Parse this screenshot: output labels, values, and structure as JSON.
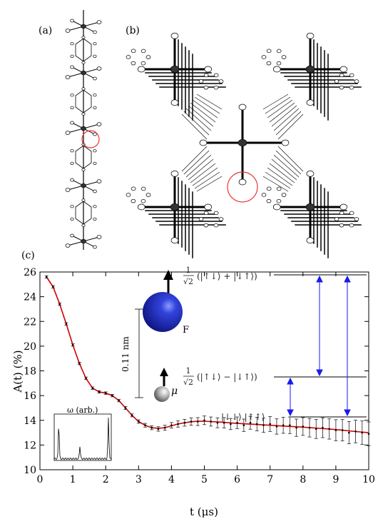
{
  "panels": {
    "a_label": "(a)",
    "b_label": "(b)",
    "c_label": "(c)"
  },
  "chart_data": {
    "type": "scatter",
    "xlabel": "t (μs)",
    "ylabel": "A(t) (%)",
    "xlim": [
      0,
      10
    ],
    "ylim": [
      10,
      26
    ],
    "xticks": [
      0,
      1,
      2,
      3,
      4,
      5,
      6,
      7,
      8,
      9,
      10
    ],
    "yticks": [
      10,
      12,
      14,
      16,
      18,
      20,
      22,
      24,
      26
    ],
    "grid": false,
    "series": [
      {
        "kind": "data-with-errorbars",
        "color": "#000000",
        "x": [
          0.2,
          0.4,
          0.6,
          0.8,
          1.0,
          1.2,
          1.4,
          1.6,
          1.8,
          2.0,
          2.2,
          2.4,
          2.6,
          2.8,
          3.0,
          3.2,
          3.4,
          3.6,
          3.8,
          4.0,
          4.2,
          4.4,
          4.6,
          4.8,
          5.0,
          5.2,
          5.4,
          5.6,
          5.8,
          6.0,
          6.2,
          6.4,
          6.6,
          6.8,
          7.0,
          7.2,
          7.4,
          7.6,
          7.8,
          8.0,
          8.2,
          8.4,
          8.6,
          8.8,
          9.0,
          9.2,
          9.4,
          9.6,
          9.8,
          10.0
        ],
        "y": [
          25.6,
          24.8,
          23.4,
          21.8,
          20.1,
          18.6,
          17.4,
          16.6,
          16.3,
          16.2,
          16.0,
          15.6,
          15.0,
          14.4,
          13.9,
          13.6,
          13.4,
          13.3,
          13.4,
          13.6,
          13.7,
          13.8,
          13.9,
          13.9,
          14.0,
          13.9,
          13.8,
          13.8,
          13.7,
          13.8,
          13.6,
          13.8,
          13.7,
          13.6,
          13.7,
          13.5,
          13.6,
          13.6,
          13.4,
          13.5,
          13.4,
          13.3,
          13.4,
          13.3,
          13.2,
          13.2,
          13.0,
          13.1,
          13.0,
          12.9
        ],
        "err": [
          0.1,
          0.1,
          0.1,
          0.1,
          0.1,
          0.1,
          0.1,
          0.1,
          0.1,
          0.1,
          0.1,
          0.1,
          0.12,
          0.12,
          0.14,
          0.15,
          0.16,
          0.18,
          0.2,
          0.22,
          0.25,
          0.27,
          0.3,
          0.32,
          0.35,
          0.37,
          0.4,
          0.42,
          0.45,
          0.47,
          0.5,
          0.52,
          0.55,
          0.57,
          0.6,
          0.62,
          0.65,
          0.67,
          0.7,
          0.72,
          0.75,
          0.77,
          0.8,
          0.82,
          0.85,
          0.87,
          0.9,
          0.92,
          0.95,
          0.97
        ]
      },
      {
        "kind": "fit",
        "color": "#cc0000",
        "x": [
          0.2,
          0.4,
          0.6,
          0.8,
          1.0,
          1.2,
          1.4,
          1.6,
          1.8,
          2.0,
          2.2,
          2.4,
          2.6,
          2.8,
          3.0,
          3.2,
          3.4,
          3.6,
          3.8,
          4.0,
          4.2,
          4.4,
          4.6,
          4.8,
          5.0,
          5.5,
          6.0,
          6.5,
          7.0,
          7.5,
          8.0,
          8.5,
          9.0,
          9.5,
          10.0
        ],
        "y": [
          25.6,
          24.8,
          23.4,
          21.8,
          20.1,
          18.6,
          17.4,
          16.6,
          16.3,
          16.2,
          16.0,
          15.6,
          15.0,
          14.4,
          13.9,
          13.6,
          13.4,
          13.35,
          13.4,
          13.55,
          13.7,
          13.8,
          13.88,
          13.92,
          13.93,
          13.85,
          13.75,
          13.68,
          13.6,
          13.52,
          13.45,
          13.35,
          13.25,
          13.12,
          13.0
        ]
      }
    ],
    "inset_spectrum": {
      "label": "ω (arb.)",
      "peaks_x": [
        0.08,
        0.45,
        0.95
      ],
      "peaks_height": [
        0.85,
        0.3,
        0.97
      ]
    },
    "energy_levels": {
      "top": "(|↑↓⟩ + |↓↑⟩)",
      "middle": "(|↑↓⟩ − |↓↑⟩)",
      "bottom": "|↓↓⟩ |↑↑⟩",
      "prefactor_num": "1",
      "prefactor_den": "√2"
    },
    "atoms": {
      "fluorine": "F",
      "muon": "μ",
      "distance": "0.11 nm"
    }
  }
}
